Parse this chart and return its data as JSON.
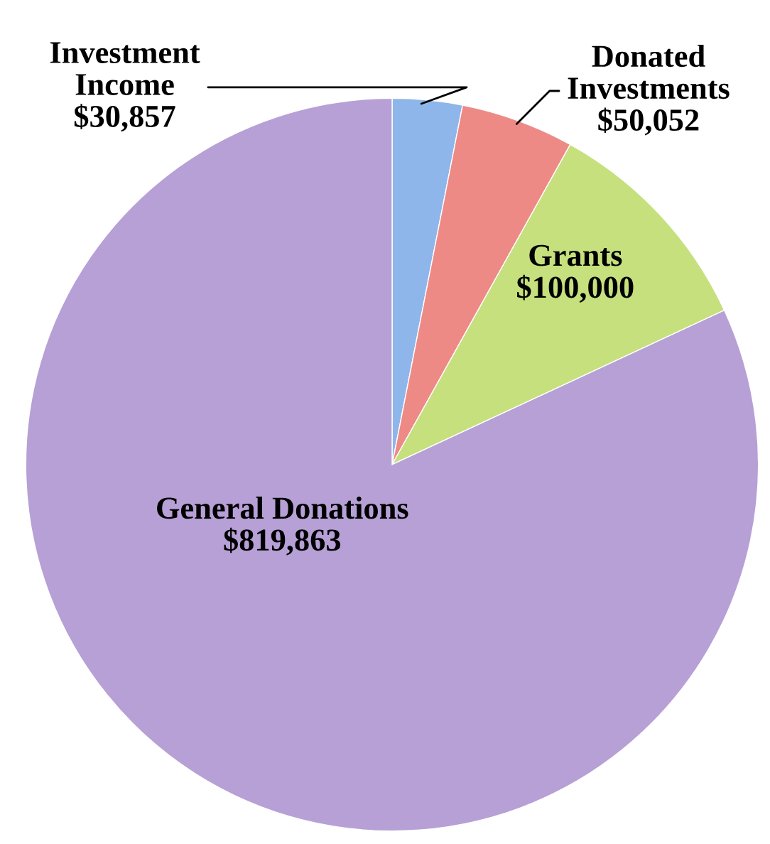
{
  "chart_data": {
    "type": "pie",
    "categories": [
      "Investment Income",
      "Donated Investments",
      "Grants",
      "General Donations"
    ],
    "values": [
      30857,
      50052,
      100000,
      819863
    ],
    "value_labels": [
      "$30,857",
      "$50,052",
      "$100,000",
      "$819,863"
    ],
    "colors": [
      "#8fb6ea",
      "#ee8a86",
      "#c6e07e",
      "#b6a0d6"
    ]
  }
}
